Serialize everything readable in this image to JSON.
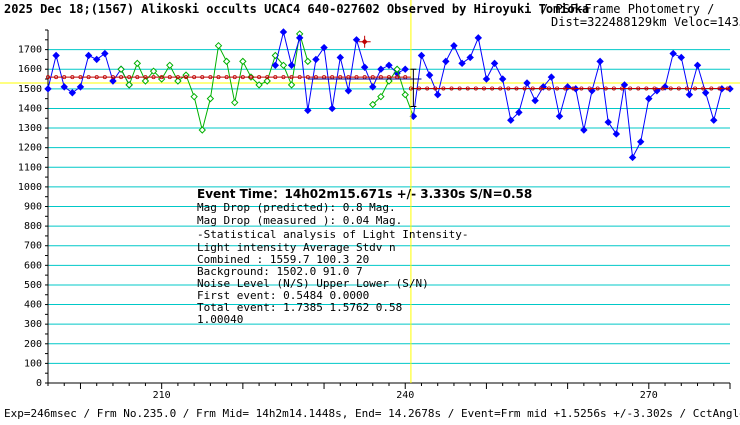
{
  "header": {
    "title": "2025 Dec 18;(1567) Alikoski occults UCAC4 640-027602 Observed by Hiroyuki Tomioka",
    "method": " / PSF-Frame Photometry /",
    "dist_veloc": "Dist=322488129km Veloc=14338m/sec"
  },
  "footer": {
    "text": "Exp=246msec / Frm No.235.0 / Frm Mid= 14h2m14.1448s, End= 14.2678s / Event=Frm mid +1.5256s +/-3.302s / CctAngle=0.0deg"
  },
  "stats": {
    "event_time": "Event Time：14h02m15.671s  +/- 3.330s  S/N=0.58",
    "drop_pred": "Mag Drop (predicted):  0.8   Mag.",
    "drop_meas": "Mag Drop (measured ):  0.04  Mag.",
    "analysis_title": "-Statistical analysis of Light Intensity-",
    "li_header": "Light intensity    Average   Stdv      n",
    "combined": "  Combined  :      1559.7    100.3     20",
    "background": "  Background:      1502.0     91.0      7",
    "noise_header": "Noise Level (N/S)   Upper     Lower    (S/N)",
    "first_event": "  First event:     0.5484    0.0000",
    "total_event": "  Total event:     1.7385    1.5762    0.58",
    "misc": "1.00040"
  },
  "colors": {
    "grid": "#00c8c8",
    "blue": "#0000ff",
    "green": "#00b000",
    "red": "#c00000",
    "yellow": "#ffff00",
    "dark": "#000080"
  },
  "chart_data": {
    "type": "line",
    "xlim": [
      196,
      280
    ],
    "ylim": [
      0,
      1800
    ],
    "y_ticks": [
      0,
      100,
      200,
      300,
      400,
      500,
      600,
      700,
      800,
      900,
      1000,
      1100,
      1200,
      1300,
      1400,
      1500,
      1600,
      1700
    ],
    "x_ticks": [
      210,
      240,
      270
    ],
    "event_x": 240.7,
    "yellow_line_y": 1530,
    "grid": true,
    "series": [
      {
        "role": "pre",
        "color": "blue",
        "x": [
          196,
          197,
          198,
          199,
          200,
          201,
          202,
          203,
          204,
          205,
          206
        ],
        "y": [
          1500,
          1670,
          1510,
          1480,
          1510,
          1670,
          1650,
          1680,
          1540,
          1600,
          1520
        ]
      },
      {
        "role": "comparison",
        "color": "green",
        "x": [
          205,
          206,
          207,
          208,
          209,
          210,
          211,
          212,
          213,
          214,
          215,
          216,
          217,
          218,
          219,
          220,
          221,
          222,
          223,
          224,
          225,
          226,
          227,
          228
        ],
        "y": [
          1600,
          1520,
          1630,
          1540,
          1590,
          1550,
          1620,
          1540,
          1570,
          1460,
          1290,
          1450,
          1720,
          1640,
          1430,
          1640,
          1560,
          1520,
          1540,
          1670,
          1620,
          1520,
          1780,
          1640
        ]
      },
      {
        "role": "mid",
        "color": "blue",
        "x": [
          224,
          225,
          226,
          227,
          228,
          229,
          230,
          231,
          232,
          233,
          234,
          235,
          236,
          237,
          238,
          239,
          240
        ],
        "y": [
          1620,
          1790,
          1620,
          1760,
          1390,
          1650,
          1710,
          1400,
          1660,
          1490,
          1750,
          1610,
          1510,
          1600,
          1620,
          1580,
          1600
        ]
      },
      {
        "role": "mid-green",
        "color": "green",
        "x": [
          236,
          237,
          238,
          239,
          240,
          241
        ],
        "y": [
          1420,
          1460,
          1540,
          1600,
          1470,
          1360
        ]
      },
      {
        "role": "post",
        "color": "blue",
        "x": [
          241,
          242,
          243,
          244,
          245,
          246,
          247,
          248,
          249,
          250,
          251,
          252,
          253,
          254,
          255,
          256,
          257,
          258,
          259,
          260,
          261,
          262,
          263,
          264,
          265,
          266,
          267,
          268,
          269,
          270,
          271,
          272,
          273,
          274,
          275,
          276,
          277,
          278,
          279,
          280
        ],
        "y": [
          1360,
          1670,
          1570,
          1470,
          1640,
          1720,
          1630,
          1660,
          1760,
          1550,
          1630,
          1550,
          1340,
          1380,
          1530,
          1440,
          1510,
          1560,
          1360,
          1510,
          1500,
          1290,
          1490,
          1640,
          1330,
          1270,
          1520,
          1150,
          1230,
          1450,
          1490,
          1510,
          1680,
          1660,
          1470,
          1620,
          1480,
          1340,
          1500,
          1500
        ]
      }
    ],
    "red_levels": [
      {
        "x1": 196,
        "x2": 240.7,
        "y": 1559.7
      },
      {
        "x1": 240.7,
        "x2": 280,
        "y": 1502.0
      }
    ],
    "red_marker": {
      "x": 235,
      "y": 1740
    },
    "error_bar": {
      "x": 241,
      "y_low": 1410,
      "y_high": 1600
    },
    "level_bar": {
      "x1": 228,
      "x2": 242,
      "y": 1550
    }
  }
}
